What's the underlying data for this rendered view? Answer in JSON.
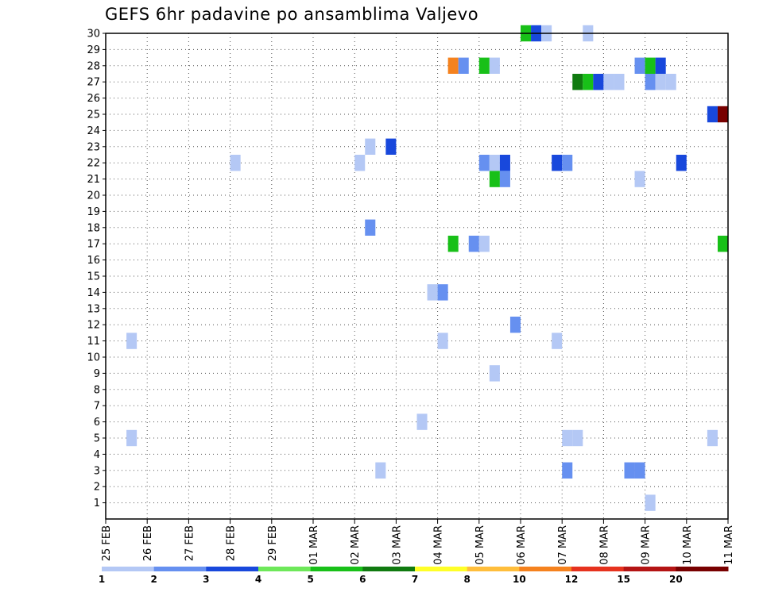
{
  "chart_data": {
    "type": "heatmap",
    "title": "GEFS 6hr padavine po ansamblima Valjevo",
    "xlabel": "",
    "ylabel": "",
    "x_ticks": [
      "25 FEB",
      "26 FEB",
      "27 FEB",
      "28 FEB",
      "29 FEB",
      "01 MAR",
      "02 MAR",
      "03 MAR",
      "04 MAR",
      "05 MAR",
      "06 MAR",
      "07 MAR",
      "08 MAR",
      "09 MAR",
      "10 MAR",
      "11 MAR"
    ],
    "x_range": [
      "25 FEB 00Z",
      "11 MAR 00Z"
    ],
    "time_step_hours": 6,
    "y_ticks": [
      1,
      2,
      3,
      4,
      5,
      6,
      7,
      8,
      9,
      10,
      11,
      12,
      13,
      14,
      15,
      16,
      17,
      18,
      19,
      20,
      21,
      22,
      23,
      24,
      25,
      26,
      27,
      28,
      29,
      30
    ],
    "y_range": [
      0,
      30
    ],
    "grid": "dotted",
    "legend": {
      "position": "bottom",
      "levels": [
        "1",
        "2",
        "3",
        "4",
        "5",
        "6",
        "7",
        "8",
        "10",
        "12",
        "15",
        "20"
      ],
      "colors": [
        "#b4c8f5",
        "#6690f0",
        "#1848dc",
        "#6ee85a",
        "#18c018",
        "#107a10",
        "#ffff28",
        "#ffbe3c",
        "#f5821e",
        "#e6321e",
        "#b41414",
        "#780000"
      ]
    },
    "cells": [
      {
        "member": 30,
        "start": "06 MAR 00Z",
        "precip_class": 5
      },
      {
        "member": 30,
        "start": "06 MAR 06Z",
        "precip_class": 3
      },
      {
        "member": 30,
        "start": "06 MAR 12Z",
        "precip_class": 1
      },
      {
        "member": 30,
        "start": "07 MAR 12Z",
        "precip_class": 1
      },
      {
        "member": 28,
        "start": "04 MAR 06Z",
        "precip_class": 10
      },
      {
        "member": 28,
        "start": "04 MAR 12Z",
        "precip_class": 2
      },
      {
        "member": 28,
        "start": "05 MAR 00Z",
        "precip_class": 5
      },
      {
        "member": 28,
        "start": "05 MAR 06Z",
        "precip_class": 1
      },
      {
        "member": 28,
        "start": "08 MAR 18Z",
        "precip_class": 2
      },
      {
        "member": 28,
        "start": "09 MAR 00Z",
        "precip_class": 5
      },
      {
        "member": 28,
        "start": "09 MAR 06Z",
        "precip_class": 3
      },
      {
        "member": 27,
        "start": "07 MAR 06Z",
        "precip_class": 6
      },
      {
        "member": 27,
        "start": "07 MAR 12Z",
        "precip_class": 5
      },
      {
        "member": 27,
        "start": "07 MAR 18Z",
        "precip_class": 3
      },
      {
        "member": 27,
        "start": "08 MAR 00Z",
        "precip_class": 1
      },
      {
        "member": 27,
        "start": "08 MAR 06Z",
        "precip_class": 1
      },
      {
        "member": 27,
        "start": "09 MAR 00Z",
        "precip_class": 2
      },
      {
        "member": 27,
        "start": "09 MAR 06Z",
        "precip_class": 1
      },
      {
        "member": 27,
        "start": "09 MAR 12Z",
        "precip_class": 1
      },
      {
        "member": 25,
        "start": "10 MAR 12Z",
        "precip_class": 3
      },
      {
        "member": 25,
        "start": "10 MAR 18Z",
        "precip_class": 20
      },
      {
        "member": 23,
        "start": "02 MAR 06Z",
        "precip_class": 1
      },
      {
        "member": 23,
        "start": "02 MAR 18Z",
        "precip_class": 3
      },
      {
        "member": 22,
        "start": "28 FEB 00Z",
        "precip_class": 1
      },
      {
        "member": 22,
        "start": "02 MAR 00Z",
        "precip_class": 1
      },
      {
        "member": 22,
        "start": "05 MAR 00Z",
        "precip_class": 2
      },
      {
        "member": 22,
        "start": "05 MAR 06Z",
        "precip_class": 1
      },
      {
        "member": 22,
        "start": "05 MAR 12Z",
        "precip_class": 3
      },
      {
        "member": 22,
        "start": "06 MAR 18Z",
        "precip_class": 3
      },
      {
        "member": 22,
        "start": "07 MAR 00Z",
        "precip_class": 2
      },
      {
        "member": 22,
        "start": "09 MAR 18Z",
        "precip_class": 3
      },
      {
        "member": 21,
        "start": "05 MAR 06Z",
        "precip_class": 5
      },
      {
        "member": 21,
        "start": "05 MAR 12Z",
        "precip_class": 2
      },
      {
        "member": 21,
        "start": "08 MAR 18Z",
        "precip_class": 1
      },
      {
        "member": 18,
        "start": "02 MAR 06Z",
        "precip_class": 2
      },
      {
        "member": 17,
        "start": "10 MAR 18Z",
        "precip_class": 5
      },
      {
        "member": 17,
        "start": "04 MAR 06Z",
        "precip_class": 5
      },
      {
        "member": 17,
        "start": "04 MAR 18Z",
        "precip_class": 2
      },
      {
        "member": 17,
        "start": "05 MAR 00Z",
        "precip_class": 1
      },
      {
        "member": 14,
        "start": "03 MAR 18Z",
        "precip_class": 1
      },
      {
        "member": 14,
        "start": "04 MAR 00Z",
        "precip_class": 2
      },
      {
        "member": 12,
        "start": "05 MAR 18Z",
        "precip_class": 2
      },
      {
        "member": 11,
        "start": "25 FEB 12Z",
        "precip_class": 1
      },
      {
        "member": 11,
        "start": "04 MAR 00Z",
        "precip_class": 1
      },
      {
        "member": 11,
        "start": "06 MAR 18Z",
        "precip_class": 1
      },
      {
        "member": 9,
        "start": "05 MAR 06Z",
        "precip_class": 1
      },
      {
        "member": 6,
        "start": "03 MAR 12Z",
        "precip_class": 1
      },
      {
        "member": 5,
        "start": "25 FEB 12Z",
        "precip_class": 1
      },
      {
        "member": 5,
        "start": "07 MAR 00Z",
        "precip_class": 1
      },
      {
        "member": 5,
        "start": "07 MAR 06Z",
        "precip_class": 1
      },
      {
        "member": 5,
        "start": "10 MAR 12Z",
        "precip_class": 1
      },
      {
        "member": 3,
        "start": "02 MAR 12Z",
        "precip_class": 1
      },
      {
        "member": 3,
        "start": "07 MAR 00Z",
        "precip_class": 2
      },
      {
        "member": 3,
        "start": "08 MAR 12Z",
        "precip_class": 2
      },
      {
        "member": 3,
        "start": "08 MAR 18Z",
        "precip_class": 2
      },
      {
        "member": 1,
        "start": "09 MAR 00Z",
        "precip_class": 1
      }
    ]
  }
}
